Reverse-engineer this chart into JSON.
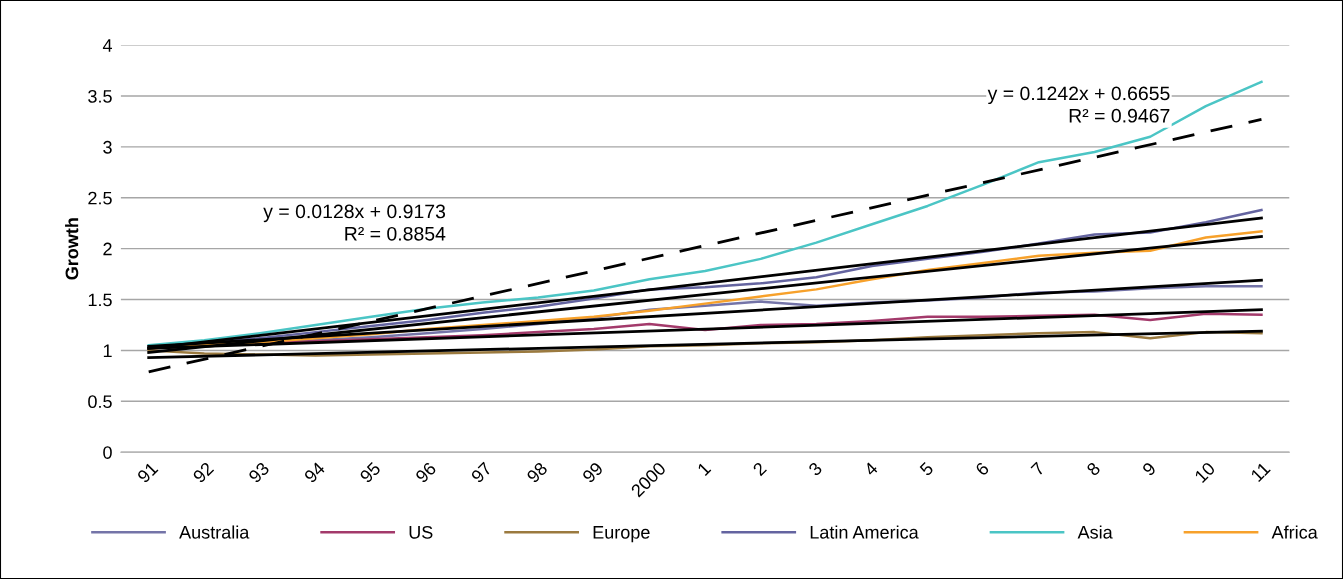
{
  "chart_data": {
    "type": "line",
    "ylabel": "Growth",
    "categories": [
      "91",
      "92",
      "93",
      "94",
      "95",
      "96",
      "97",
      "98",
      "99",
      "2000",
      "1",
      "2",
      "3",
      "4",
      "5",
      "6",
      "7",
      "8",
      "9",
      "10",
      "11"
    ],
    "series": [
      {
        "name": "Australia",
        "color": "#7474a8",
        "values": [
          1.03,
          1.05,
          1.07,
          1.1,
          1.13,
          1.17,
          1.21,
          1.26,
          1.32,
          1.4,
          1.44,
          1.48,
          1.44,
          1.47,
          1.49,
          1.52,
          1.57,
          1.58,
          1.61,
          1.63,
          1.63
        ]
      },
      {
        "name": "US",
        "color": "#a33a6b",
        "values": [
          1.02,
          1.05,
          1.07,
          1.09,
          1.11,
          1.13,
          1.15,
          1.18,
          1.21,
          1.26,
          1.2,
          1.25,
          1.26,
          1.29,
          1.33,
          1.33,
          1.34,
          1.35,
          1.3,
          1.36,
          1.35
        ]
      },
      {
        "name": "Europe",
        "color": "#9b7a3f",
        "values": [
          1.0,
          0.97,
          0.96,
          0.95,
          0.96,
          0.97,
          0.98,
          0.99,
          1.01,
          1.04,
          1.05,
          1.07,
          1.08,
          1.1,
          1.13,
          1.15,
          1.17,
          1.18,
          1.12,
          1.18,
          1.17
        ]
      },
      {
        "name": "Latin America",
        "color": "#6464a0",
        "values": [
          1.03,
          1.07,
          1.12,
          1.18,
          1.24,
          1.3,
          1.37,
          1.43,
          1.51,
          1.6,
          1.62,
          1.66,
          1.72,
          1.83,
          1.9,
          1.97,
          2.05,
          2.14,
          2.16,
          2.26,
          2.38
        ]
      },
      {
        "name": "Asia",
        "color": "#4bc5c5",
        "values": [
          1.05,
          1.1,
          1.17,
          1.25,
          1.33,
          1.41,
          1.47,
          1.52,
          1.59,
          1.7,
          1.78,
          1.9,
          2.06,
          2.24,
          2.42,
          2.63,
          2.85,
          2.95,
          3.1,
          3.4,
          3.64
        ]
      },
      {
        "name": "Africa",
        "color": "#f7a12b",
        "values": [
          1.02,
          1.05,
          1.08,
          1.12,
          1.16,
          1.21,
          1.25,
          1.29,
          1.33,
          1.39,
          1.46,
          1.53,
          1.6,
          1.7,
          1.79,
          1.86,
          1.93,
          1.96,
          1.98,
          2.11,
          2.17
        ]
      },
      {
        "color": "#000000",
        "x": [
          "91",
          "11"
        ],
        "values": [
          1.04,
          1.69
        ]
      },
      {
        "color": "#000000",
        "x": [
          "91",
          "11"
        ],
        "values": [
          1.02,
          1.4
        ]
      },
      {
        "color": "#000000",
        "x": [
          "91",
          "11"
        ],
        "values": [
          0.93,
          1.19
        ]
      },
      {
        "color": "#000000",
        "x": [
          "91",
          "11"
        ],
        "values": [
          1.02,
          2.3
        ]
      },
      {
        "color": "#000000",
        "x": [
          "91",
          "11"
        ],
        "values": [
          0.79,
          3.27
        ],
        "line_style": "dashed"
      },
      {
        "color": "#000000",
        "x": [
          "91",
          "11"
        ],
        "values": [
          0.98,
          2.12
        ]
      }
    ],
    "ylim": [
      0,
      4
    ],
    "yticks": [
      0,
      0.5,
      1,
      1.5,
      2,
      2.5,
      3,
      3.5,
      4
    ],
    "grid": "y",
    "legend": "bottom",
    "annotations": [
      "y = 0.0128x + 0.9173\nR² = 0.8854",
      "y = 0.1242x + 0.6655\nR² = 0.9467"
    ]
  }
}
